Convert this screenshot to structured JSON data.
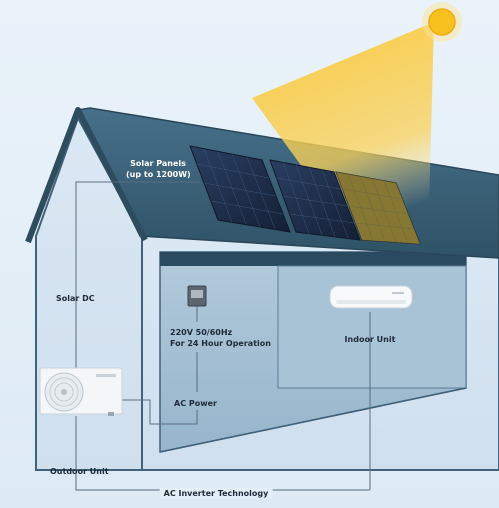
{
  "labels": {
    "solar_panels_line1": "Solar Panels",
    "solar_panels_line2": "(up to 1200W)",
    "solar_dc": "Solar DC",
    "power_line1": "220V 50/60Hz",
    "power_line2": "For 24 Hour Operation",
    "indoor_unit": "Indoor Unit",
    "ac_power": "AC Power",
    "outdoor_unit": "Outdoor Unit",
    "technology": "AC Inverter Technology"
  },
  "icons": [
    "sun-icon",
    "solar-panel-icon",
    "power-meter-icon",
    "indoor-unit-icon",
    "outdoor-unit-icon"
  ],
  "colors": {
    "background": "#e6f0f8",
    "roof": "#3d6478",
    "roof_edge": "#2d4c5e",
    "wall": "#d9e7f3",
    "interior": "#a5bfd2",
    "outline": "#41627a",
    "sun": "#f7c21d",
    "sunbeam": "#f9c83a",
    "panel": "#1d2e4a",
    "wire": "#5a6d7e"
  }
}
